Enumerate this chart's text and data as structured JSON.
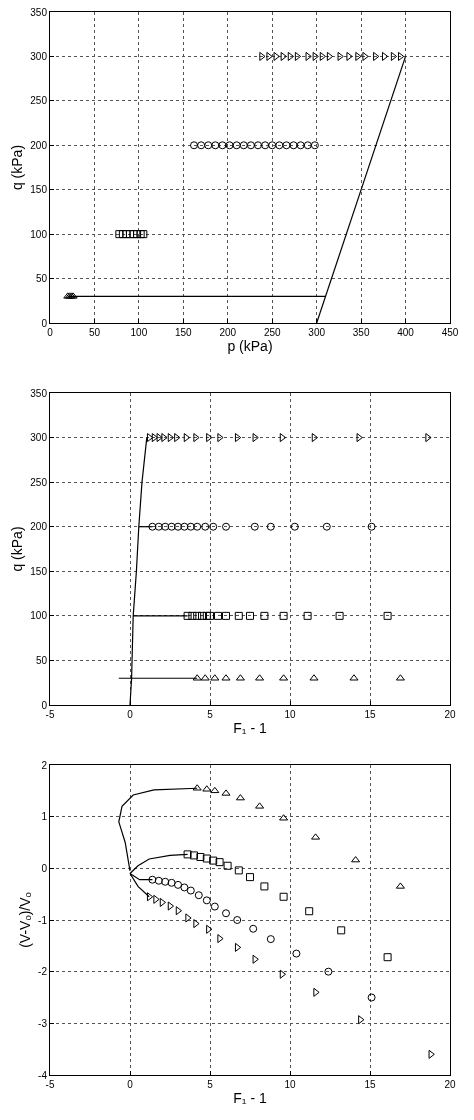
{
  "chart_data": [
    {
      "type": "scatter",
      "xlabel": "p (kPa)",
      "ylabel": "q (kPa)",
      "xlim": [
        0,
        450
      ],
      "xticks": [
        0,
        50,
        100,
        150,
        200,
        250,
        300,
        350,
        400,
        450
      ],
      "ylim": [
        0,
        350
      ],
      "yticks": [
        0,
        50,
        100,
        150,
        200,
        250,
        300,
        350
      ],
      "grid": true,
      "series": [
        {
          "type": "line",
          "color": "#000000",
          "x": [
            300,
            400
          ],
          "values": [
            0,
            300
          ]
        },
        {
          "type": "line",
          "color": "#000000",
          "x": [
            20,
            310
          ],
          "values": [
            30,
            30
          ]
        },
        {
          "type": "scatter",
          "marker": "triangle",
          "color": "#000000",
          "x": [
            20,
            22,
            24,
            26
          ],
          "values": [
            30,
            30,
            30,
            30
          ]
        },
        {
          "type": "scatter",
          "marker": "square",
          "color": "#000000",
          "x": [
            78,
            82,
            86,
            90,
            94,
            98,
            102,
            105
          ],
          "values": [
            100,
            100,
            100,
            100,
            100,
            100,
            100,
            100
          ]
        },
        {
          "type": "scatter",
          "marker": "circle",
          "color": "#000000",
          "x": [
            162,
            170,
            178,
            186,
            194,
            202,
            210,
            218,
            226,
            234,
            242,
            250,
            258,
            266,
            274,
            282,
            290,
            298
          ],
          "values": [
            200,
            200,
            200,
            200,
            200,
            200,
            200,
            200,
            200,
            200,
            200,
            200,
            200,
            200,
            200,
            200,
            200,
            200
          ]
        },
        {
          "type": "scatter",
          "marker": "triangle-right",
          "color": "#000000",
          "x": [
            238,
            246,
            254,
            262,
            270,
            278,
            290,
            298,
            306,
            314,
            326,
            336,
            346,
            354,
            366,
            376,
            386,
            394
          ],
          "values": [
            300,
            300,
            300,
            300,
            300,
            300,
            300,
            300,
            300,
            300,
            300,
            300,
            300,
            300,
            300,
            300,
            300,
            300
          ]
        }
      ]
    },
    {
      "type": "scatter",
      "xlabel": "F₁ - 1",
      "ylabel": "q (kPa)",
      "xlim": [
        -5,
        20
      ],
      "xticks": [
        -5,
        0,
        5,
        10,
        15,
        20
      ],
      "ylim": [
        0,
        350
      ],
      "yticks": [
        0,
        50,
        100,
        150,
        200,
        250,
        300,
        350
      ],
      "grid": true,
      "series": [
        {
          "type": "line",
          "color": "#000000",
          "x": [
            0,
            0.1,
            0.2,
            0.4,
            0.55,
            0.75,
            1.05
          ],
          "values": [
            0,
            30,
            100,
            150,
            200,
            250,
            300
          ]
        },
        {
          "type": "line",
          "color": "#000000",
          "x": [
            -0.7,
            4.2
          ],
          "values": [
            30,
            30
          ]
        },
        {
          "type": "line",
          "color": "#000000",
          "x": [
            0.2,
            3.6
          ],
          "values": [
            100,
            100
          ]
        },
        {
          "type": "line",
          "color": "#000000",
          "x": [
            0.55,
            1.4
          ],
          "values": [
            200,
            200
          ]
        },
        {
          "type": "scatter",
          "marker": "triangle",
          "color": "#000000",
          "x": [
            4.2,
            4.7,
            5.3,
            6.0,
            6.9,
            8.1,
            9.6,
            11.5,
            14.0,
            16.9
          ],
          "values": [
            30,
            30,
            30,
            30,
            30,
            30,
            30,
            30,
            30,
            30
          ]
        },
        {
          "type": "scatter",
          "marker": "square",
          "color": "#000000",
          "x": [
            3.6,
            3.9,
            4.2,
            4.5,
            4.8,
            5.0,
            5.5,
            6.0,
            6.8,
            7.5,
            8.4,
            9.6,
            11.1,
            13.1,
            16.1
          ],
          "values": [
            100,
            100,
            100,
            100,
            100,
            100,
            100,
            100,
            100,
            100,
            100,
            100,
            100,
            100,
            100
          ]
        },
        {
          "type": "scatter",
          "marker": "circle",
          "color": "#000000",
          "x": [
            1.4,
            1.8,
            2.2,
            2.6,
            3.0,
            3.4,
            3.8,
            4.2,
            4.7,
            5.2,
            6.0,
            7.8,
            8.8,
            10.3,
            12.3,
            15.1
          ],
          "values": [
            200,
            200,
            200,
            200,
            200,
            200,
            200,
            200,
            200,
            200,
            200,
            200,
            200,
            200,
            200,
            200
          ]
        },
        {
          "type": "scatter",
          "marker": "triangle-right",
          "color": "#000000",
          "x": [
            1.2,
            1.5,
            1.8,
            2.1,
            2.5,
            2.9,
            3.5,
            4.1,
            4.9,
            5.6,
            6.7,
            7.8,
            9.5,
            11.5,
            14.3,
            18.6
          ],
          "values": [
            300,
            300,
            300,
            300,
            300,
            300,
            300,
            300,
            300,
            300,
            300,
            300,
            300,
            300,
            300,
            300
          ]
        }
      ]
    },
    {
      "type": "scatter",
      "xlabel": "F₁ - 1",
      "ylabel": "(V-Vₒ)/Vₒ",
      "xlim": [
        -5,
        20
      ],
      "xticks": [
        -5,
        0,
        5,
        10,
        15,
        20
      ],
      "ylim": [
        -4,
        2
      ],
      "yticks": [
        -4,
        -3,
        -2,
        -1,
        0,
        1,
        2
      ],
      "grid": true,
      "series": [
        {
          "type": "line",
          "color": "#000000",
          "x": [
            0,
            -0.3,
            -0.7,
            -0.5,
            0.2,
            1.5,
            4.2
          ],
          "values": [
            -0.05,
            0.5,
            0.9,
            1.2,
            1.42,
            1.52,
            1.55
          ]
        },
        {
          "type": "line",
          "color": "#000000",
          "x": [
            0,
            0.5,
            1.2,
            2.5,
            3.6
          ],
          "values": [
            -0.1,
            0.05,
            0.18,
            0.25,
            0.27
          ]
        },
        {
          "type": "line",
          "color": "#000000",
          "x": [
            0,
            0.6,
            1.4
          ],
          "values": [
            -0.1,
            -0.22,
            -0.22
          ]
        },
        {
          "type": "line",
          "color": "#000000",
          "x": [
            0,
            0.5,
            1.2
          ],
          "values": [
            -0.1,
            -0.35,
            -0.55
          ]
        },
        {
          "type": "scatter",
          "marker": "triangle",
          "color": "#000000",
          "x": [
            4.2,
            4.8,
            5.3,
            6.0,
            6.9,
            8.1,
            9.6,
            11.6,
            14.1,
            16.9
          ],
          "values": [
            1.55,
            1.53,
            1.5,
            1.45,
            1.36,
            1.2,
            0.97,
            0.6,
            0.16,
            -0.35
          ]
        },
        {
          "type": "scatter",
          "marker": "square",
          "color": "#000000",
          "x": [
            3.6,
            4.0,
            4.4,
            4.8,
            5.2,
            5.6,
            6.1,
            6.8,
            7.5,
            8.4,
            9.6,
            11.2,
            13.2,
            16.1
          ],
          "values": [
            0.27,
            0.25,
            0.22,
            0.19,
            0.15,
            0.12,
            0.05,
            -0.04,
            -0.17,
            -0.35,
            -0.55,
            -0.83,
            -1.2,
            -1.72
          ]
        },
        {
          "type": "scatter",
          "marker": "circle",
          "color": "#000000",
          "x": [
            1.4,
            1.8,
            2.2,
            2.6,
            3.0,
            3.4,
            3.8,
            4.3,
            4.8,
            5.3,
            6.0,
            6.7,
            7.7,
            8.8,
            10.4,
            12.4,
            15.1
          ],
          "values": [
            -0.22,
            -0.24,
            -0.26,
            -0.28,
            -0.32,
            -0.37,
            -0.43,
            -0.52,
            -0.62,
            -0.74,
            -0.87,
            -1.0,
            -1.17,
            -1.37,
            -1.65,
            -2.0,
            -2.5
          ]
        },
        {
          "type": "scatter",
          "marker": "triangle-right",
          "color": "#000000",
          "x": [
            1.2,
            1.6,
            2.0,
            2.5,
            3.0,
            3.6,
            4.1,
            4.9,
            5.6,
            6.7,
            7.8,
            9.5,
            11.6,
            14.4,
            18.8
          ],
          "values": [
            -0.55,
            -0.6,
            -0.66,
            -0.73,
            -0.82,
            -0.96,
            -1.07,
            -1.18,
            -1.36,
            -1.53,
            -1.76,
            -2.05,
            -2.4,
            -2.93,
            -3.6
          ]
        }
      ]
    }
  ]
}
